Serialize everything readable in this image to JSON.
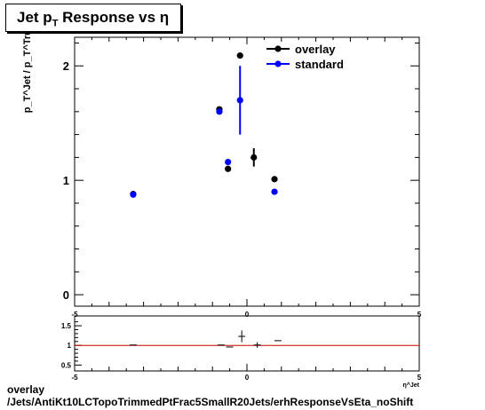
{
  "title": {
    "main": "Jet p",
    "sub": "T",
    "rest": " Response vs  η"
  },
  "footer": {
    "line1": "overlay",
    "line2": "/Jets/AntiKt10LCTopoTrimmedPtFrac5SmallR20Jets/erhResponseVsEta_noShift"
  },
  "chart_data": {
    "type": "scatter",
    "ylabel_top": "p_T^Jet / p_T^Truth",
    "xlabel": "η^Jet",
    "xlim": [
      -5,
      5
    ],
    "main_ylim": [
      -0.1,
      2.25
    ],
    "main_yticks": [
      "0",
      "1",
      "2"
    ],
    "ratio_ylim": [
      0.35,
      1.75
    ],
    "ratio_yticks": [
      "0.5",
      "1",
      "1.5"
    ],
    "xticks": [
      "-5",
      "0",
      "5"
    ],
    "legend_placement": "top-right",
    "series": [
      {
        "name": "overlay",
        "color": "#000000",
        "points": [
          {
            "x": -3.3,
            "y": 0.88,
            "err": 0.01
          },
          {
            "x": -0.8,
            "y": 1.62,
            "err": 0.02
          },
          {
            "x": -0.55,
            "y": 1.1,
            "err": 0.02
          },
          {
            "x": -0.2,
            "y": 2.09,
            "err": 0.02
          },
          {
            "x": 0.2,
            "y": 1.2,
            "err": 0.08
          },
          {
            "x": 0.8,
            "y": 1.01,
            "err": 0.02
          }
        ]
      },
      {
        "name": "standard",
        "color": "#0000ff",
        "points": [
          {
            "x": -3.3,
            "y": 0.875,
            "err": 0.01
          },
          {
            "x": -0.8,
            "y": 1.6,
            "err": 0.02
          },
          {
            "x": -0.55,
            "y": 1.16,
            "err": 0.02
          },
          {
            "x": -0.2,
            "y": 1.7,
            "err": 0.3
          },
          {
            "x": 0.8,
            "y": 0.9,
            "err": 0.02
          }
        ]
      }
    ],
    "ratio": [
      {
        "x": -3.3,
        "y": 1.01,
        "err": 0.01
      },
      {
        "x": -0.75,
        "y": 1.01,
        "err": 0.01
      },
      {
        "x": -0.5,
        "y": 0.96,
        "err": 0.01
      },
      {
        "x": -0.15,
        "y": 1.23,
        "err": 0.15
      },
      {
        "x": 0.3,
        "y": 1.01,
        "err": 0.07
      },
      {
        "x": 0.9,
        "y": 1.12,
        "err": 0.01
      }
    ],
    "reference_line": {
      "y": 1,
      "color": "#cc0000"
    }
  }
}
